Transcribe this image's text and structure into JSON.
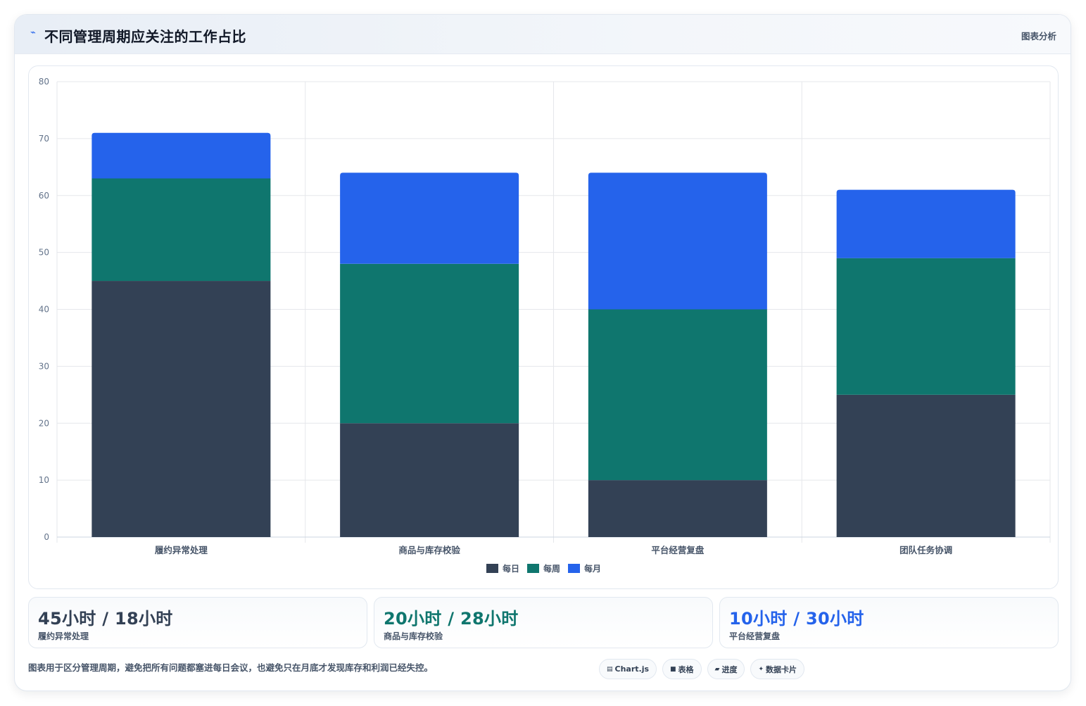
{
  "header": {
    "title": "不同管理周期应关注的工作占比",
    "right_label": "图表分析",
    "icon": "pulse-icon"
  },
  "chart_data": {
    "type": "bar",
    "stacked": true,
    "categories": [
      "履约异常处理",
      "商品与库存校验",
      "平台经营复盘",
      "团队任务协调"
    ],
    "series": [
      {
        "name": "每日",
        "color": "#334155",
        "values": [
          45,
          20,
          10,
          25
        ]
      },
      {
        "name": "每周",
        "color": "#0f766e",
        "values": [
          18,
          28,
          30,
          24
        ]
      },
      {
        "name": "每月",
        "color": "#2563eb",
        "values": [
          8,
          16,
          24,
          12
        ]
      }
    ],
    "ylim": [
      0,
      80
    ],
    "yticks": [
      0,
      10,
      20,
      30,
      40,
      50,
      60,
      70,
      80
    ],
    "grid": true,
    "legend": "bottom",
    "title": "",
    "xlabel": "",
    "ylabel": ""
  },
  "stats": [
    {
      "value": "45小时 / 18小时",
      "label": "履约异常处理",
      "color": "#334155"
    },
    {
      "value": "20小时 / 28小时",
      "label": "商品与库存校验",
      "color": "#0f766e"
    },
    {
      "value": "10小时 / 30小时",
      "label": "平台经营复盘",
      "color": "#2563eb"
    }
  ],
  "footnote": "图表用于区分管理周期，避免把所有问题都塞进每日会议，也避免只在月底才发现库存和利润已经失控。",
  "chips": [
    {
      "icon": "chart-icon",
      "glyph": "▤",
      "label": "Chart.js"
    },
    {
      "icon": "table-icon",
      "glyph": "■",
      "label": "表格"
    },
    {
      "icon": "progress-icon",
      "glyph": "▰",
      "label": "进度"
    },
    {
      "icon": "sparkle-icon",
      "glyph": "✦",
      "label": "数据卡片"
    }
  ]
}
